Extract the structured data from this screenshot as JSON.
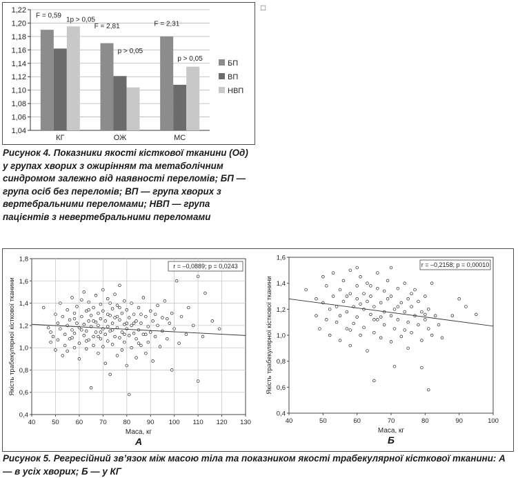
{
  "fig4": {
    "caption_label": "Рисунок 4.",
    "caption": "Показники якості кісткової тка­нини (Од) у групах хворих з ожирінням та метаболічним синдромом залежно від наявності переломів; БП — група осіб без переломів; ВП — група хворих з вертебральними переломами; НВП — група пацієнтів з невертебральними переломами"
  },
  "fig5": {
    "caption_label": "Рисунок 5.",
    "caption": "Регресійний зв’язок між масою тіла та показником якості трабекулярної кісткової ткани­ни: А — в усіх хворих; Б — у КГ"
  },
  "corner_mark": "□",
  "chart_data": [
    {
      "type": "bar",
      "categories": [
        "КГ",
        "ОЖ",
        "МС"
      ],
      "series": [
        {
          "name": "БП",
          "values": [
            1.19,
            1.17,
            1.18
          ],
          "color": "#8c8c8c"
        },
        {
          "name": "ВП",
          "values": [
            1.162,
            1.121,
            1.108
          ],
          "color": "#6b6b6b"
        },
        {
          "name": "НВП",
          "values": [
            1.195,
            1.104,
            1.135
          ],
          "color": "#c8c8c8"
        }
      ],
      "ylim": [
        1.04,
        1.22
      ],
      "yticks": [
        "1,04",
        "1,06",
        "1,08",
        "1,10",
        "1,12",
        "1,14",
        "1,16",
        "1,18",
        "1,20",
        "1,22"
      ],
      "grid": true,
      "legend_position": "right",
      "annotations": [
        {
          "text": "F = 0,59",
          "category": "КГ",
          "level": "top"
        },
        {
          "text": "1p > 0,05",
          "category": "КГ",
          "level": "top-right"
        },
        {
          "text": "F = 2,81",
          "category": "ОЖ",
          "level": "top"
        },
        {
          "text": "p > 0,05",
          "category": "ОЖ",
          "level": "middle-right"
        },
        {
          "text": "F = 2,31",
          "category": "МС",
          "level": "top"
        },
        {
          "text": "p > 0,05",
          "category": "МС",
          "level": "middle-right"
        }
      ]
    },
    {
      "type": "scatter",
      "panel_label": "А",
      "xlabel": "Маса, кг",
      "ylabel": "Якість трабекулярної кісткової тканини",
      "xlim": [
        40,
        130
      ],
      "ylim": [
        0.4,
        1.8
      ],
      "xticks": [
        "40",
        "50",
        "60",
        "70",
        "80",
        "90",
        "100",
        "110",
        "120",
        "130"
      ],
      "yticks": [
        "0,4",
        "0,6",
        "0,8",
        "1,0",
        "1,2",
        "1,4",
        "1,6",
        "1,8"
      ],
      "grid": true,
      "annotation": "r = –0,0889; p = 0,0243",
      "regression": {
        "x": [
          40,
          130
        ],
        "y": [
          1.21,
          1.11
        ]
      },
      "points": [
        [
          45,
          1.36
        ],
        [
          47,
          1.18
        ],
        [
          48,
          1.05
        ],
        [
          48,
          1.14
        ],
        [
          49,
          1.1
        ],
        [
          50,
          0.98
        ],
        [
          50,
          1.3
        ],
        [
          51,
          1.22
        ],
        [
          51,
          1.07
        ],
        [
          52,
          1.17
        ],
        [
          52,
          1.4
        ],
        [
          53,
          1.28
        ],
        [
          53,
          0.93
        ],
        [
          54,
          1.12
        ],
        [
          54,
          1.02
        ],
        [
          55,
          1.34
        ],
        [
          55,
          1.2
        ],
        [
          55,
          0.97
        ],
        [
          56,
          1.25
        ],
        [
          56,
          1.08
        ],
        [
          57,
          1.45
        ],
        [
          57,
          1.16
        ],
        [
          58,
          1.31
        ],
        [
          58,
          1.0
        ],
        [
          58,
          1.13
        ],
        [
          59,
          1.22
        ],
        [
          59,
          1.37
        ],
        [
          60,
          1.04
        ],
        [
          60,
          1.18
        ],
        [
          60,
          0.9
        ],
        [
          61,
          1.28
        ],
        [
          61,
          1.43
        ],
        [
          62,
          1.11
        ],
        [
          62,
          1.21
        ],
        [
          62,
          1.5
        ],
        [
          63,
          0.99
        ],
        [
          63,
          1.33
        ],
        [
          63,
          1.15
        ],
        [
          64,
          1.24
        ],
        [
          64,
          1.07
        ],
        [
          64,
          1.41
        ],
        [
          65,
          1.19
        ],
        [
          65,
          0.64
        ],
        [
          65,
          1.29
        ],
        [
          66,
          1.1
        ],
        [
          66,
          1.36
        ],
        [
          66,
          1.02
        ],
        [
          67,
          1.23
        ],
        [
          67,
          1.47
        ],
        [
          67,
          1.14
        ],
        [
          68,
          0.95
        ],
        [
          68,
          1.31
        ],
        [
          68,
          1.2
        ],
        [
          69,
          1.08
        ],
        [
          69,
          1.39
        ],
        [
          69,
          1.26
        ],
        [
          70,
          1.17
        ],
        [
          70,
          1.01
        ],
        [
          70,
          1.52
        ],
        [
          70,
          1.33
        ],
        [
          71,
          1.12
        ],
        [
          71,
          1.24
        ],
        [
          71,
          0.86
        ],
        [
          72,
          1.44
        ],
        [
          72,
          1.19
        ],
        [
          72,
          1.06
        ],
        [
          73,
          1.29
        ],
        [
          73,
          0.76
        ],
        [
          73,
          1.15
        ],
        [
          74,
          1.35
        ],
        [
          74,
          1.22
        ],
        [
          74,
          1.03
        ],
        [
          75,
          1.1
        ],
        [
          75,
          1.48
        ],
        [
          75,
          1.27
        ],
        [
          76,
          1.18
        ],
        [
          76,
          0.93
        ],
        [
          76,
          1.38
        ],
        [
          77,
          1.25
        ],
        [
          77,
          1.09
        ],
        [
          77,
          1.56
        ],
        [
          78,
          1.14
        ],
        [
          78,
          1.31
        ],
        [
          78,
          0.98
        ],
        [
          79,
          1.21
        ],
        [
          79,
          1.42
        ],
        [
          79,
          1.05
        ],
        [
          80,
          1.17
        ],
        [
          80,
          0.84
        ],
        [
          80,
          1.34
        ],
        [
          81,
          1.27
        ],
        [
          81,
          1.11
        ],
        [
          81,
          0.58
        ],
        [
          82,
          1.2
        ],
        [
          82,
          1.4
        ],
        [
          82,
          1.0
        ],
        [
          83,
          1.13
        ],
        [
          83,
          1.3
        ],
        [
          84,
          1.24
        ],
        [
          84,
          0.91
        ],
        [
          84,
          1.08
        ],
        [
          85,
          1.36
        ],
        [
          85,
          1.16
        ],
        [
          86,
          1.22
        ],
        [
          86,
          1.02
        ],
        [
          87,
          1.45
        ],
        [
          87,
          1.12
        ],
        [
          88,
          1.28
        ],
        [
          88,
          0.95
        ],
        [
          89,
          1.19
        ],
        [
          89,
          1.05
        ],
        [
          90,
          1.33
        ],
        [
          90,
          1.14
        ],
        [
          91,
          1.24
        ],
        [
          91,
          0.88
        ],
        [
          92,
          1.1
        ],
        [
          93,
          1.38
        ],
        [
          93,
          1.2
        ],
        [
          94,
          1.01
        ],
        [
          95,
          1.27
        ],
        [
          95,
          1.15
        ],
        [
          96,
          1.42
        ],
        [
          97,
          1.08
        ],
        [
          98,
          1.22
        ],
        [
          99,
          1.31
        ],
        [
          99,
          0.8
        ],
        [
          100,
          1.17
        ],
        [
          101,
          1.6
        ],
        [
          102,
          1.04
        ],
        [
          103,
          1.28
        ],
        [
          105,
          1.12
        ],
        [
          106,
          1.36
        ],
        [
          108,
          1.2
        ],
        [
          110,
          1.64
        ],
        [
          110,
          0.7
        ],
        [
          112,
          1.1
        ],
        [
          113,
          1.49
        ],
        [
          116,
          1.24
        ],
        [
          119,
          1.17
        ],
        [
          58,
          1.26
        ],
        [
          61,
          1.16
        ],
        [
          64,
          1.34
        ],
        [
          66,
          1.24
        ],
        [
          69,
          1.14
        ],
        [
          72,
          1.3
        ],
        [
          74,
          1.16
        ],
        [
          77,
          1.36
        ],
        [
          79,
          1.12
        ],
        [
          83,
          1.22
        ],
        [
          86,
          1.3
        ],
        [
          88,
          1.12
        ],
        [
          57,
          1.09
        ],
        [
          63,
          1.06
        ],
        [
          68,
          1.1
        ],
        [
          73,
          1.4
        ],
        [
          76,
          1.28
        ],
        [
          80,
          1.22
        ],
        [
          85,
          1.04
        ],
        [
          92,
          1.3
        ],
        [
          97,
          1.26
        ]
      ]
    },
    {
      "type": "scatter",
      "panel_label": "Б",
      "xlabel": "Маса, кг",
      "ylabel": "Якість трабекулярної кісткової тканини",
      "xlim": [
        40,
        100
      ],
      "ylim": [
        0.4,
        1.6
      ],
      "xticks": [
        "40",
        "50",
        "60",
        "70",
        "80",
        "90",
        "100"
      ],
      "yticks": [
        "0,4",
        "0,6",
        "0,8",
        "1,0",
        "1,2",
        "1,4",
        "1,6"
      ],
      "grid": false,
      "annotation": "r = –0,2158; p = 0,00010",
      "regression": {
        "x": [
          40,
          100
        ],
        "y": [
          1.28,
          1.07
        ]
      },
      "points": [
        [
          45,
          1.35
        ],
        [
          48,
          1.28
        ],
        [
          48,
          1.15
        ],
        [
          49,
          1.05
        ],
        [
          50,
          1.25
        ],
        [
          50,
          1.45
        ],
        [
          51,
          1.12
        ],
        [
          51,
          1.38
        ],
        [
          52,
          1.2
        ],
        [
          52,
          1.0
        ],
        [
          53,
          1.3
        ],
        [
          53,
          1.48
        ],
        [
          54,
          1.1
        ],
        [
          54,
          1.22
        ],
        [
          55,
          1.35
        ],
        [
          55,
          0.96
        ],
        [
          55,
          1.15
        ],
        [
          56,
          1.26
        ],
        [
          56,
          1.42
        ],
        [
          57,
          1.05
        ],
        [
          57,
          1.18
        ],
        [
          58,
          1.32
        ],
        [
          58,
          1.5
        ],
        [
          58,
          0.92
        ],
        [
          59,
          1.22
        ],
        [
          59,
          1.09
        ],
        [
          60,
          1.38
        ],
        [
          60,
          1.14
        ],
        [
          60,
          1.28
        ],
        [
          61,
          1.0
        ],
        [
          61,
          1.45
        ],
        [
          62,
          1.2
        ],
        [
          62,
          1.32
        ],
        [
          62,
          1.06
        ],
        [
          63,
          1.26
        ],
        [
          63,
          1.4
        ],
        [
          63,
          0.88
        ],
        [
          64,
          1.16
        ],
        [
          64,
          1.3
        ],
        [
          65,
          1.02
        ],
        [
          65,
          1.22
        ],
        [
          65,
          0.65
        ],
        [
          66,
          1.36
        ],
        [
          66,
          1.12
        ],
        [
          66,
          1.48
        ],
        [
          67,
          1.25
        ],
        [
          67,
          0.98
        ],
        [
          68,
          1.18
        ],
        [
          68,
          1.34
        ],
        [
          68,
          1.08
        ],
        [
          69,
          1.28
        ],
        [
          69,
          1.42
        ],
        [
          70,
          1.15
        ],
        [
          70,
          0.95
        ],
        [
          70,
          1.3
        ],
        [
          71,
          1.2
        ],
        [
          71,
          1.05
        ],
        [
          71,
          0.76
        ],
        [
          72,
          1.36
        ],
        [
          72,
          1.12
        ],
        [
          73,
          1.25
        ],
        [
          73,
          0.99
        ],
        [
          74,
          1.18
        ],
        [
          74,
          1.4
        ],
        [
          75,
          1.1
        ],
        [
          75,
          1.28
        ],
        [
          75,
          0.9
        ],
        [
          76,
          1.22
        ],
        [
          76,
          1.02
        ],
        [
          77,
          1.35
        ],
        [
          77,
          1.15
        ],
        [
          78,
          1.08
        ],
        [
          78,
          1.26
        ],
        [
          79,
          1.18
        ],
        [
          79,
          0.96
        ],
        [
          79,
          0.75
        ],
        [
          80,
          1.12
        ],
        [
          80,
          1.3
        ],
        [
          81,
          1.05
        ],
        [
          81,
          0.58
        ],
        [
          81,
          1.2
        ],
        [
          82,
          1.0
        ],
        [
          82,
          1.4
        ],
        [
          83,
          1.15
        ],
        [
          84,
          1.08
        ],
        [
          85,
          0.98
        ],
        [
          88,
          1.15
        ],
        [
          90,
          1.28
        ],
        [
          92,
          1.22
        ],
        [
          95,
          1.16
        ],
        [
          57,
          1.3
        ],
        [
          61,
          1.24
        ],
        [
          64,
          1.38
        ],
        [
          67,
          1.14
        ],
        [
          72,
          1.22
        ],
        [
          76,
          1.32
        ],
        [
          80,
          1.16
        ],
        [
          58,
          1.04
        ],
        [
          65,
          1.12
        ],
        [
          74,
          1.04
        ],
        [
          70,
          1.52
        ],
        [
          60,
          1.52
        ]
      ]
    }
  ]
}
